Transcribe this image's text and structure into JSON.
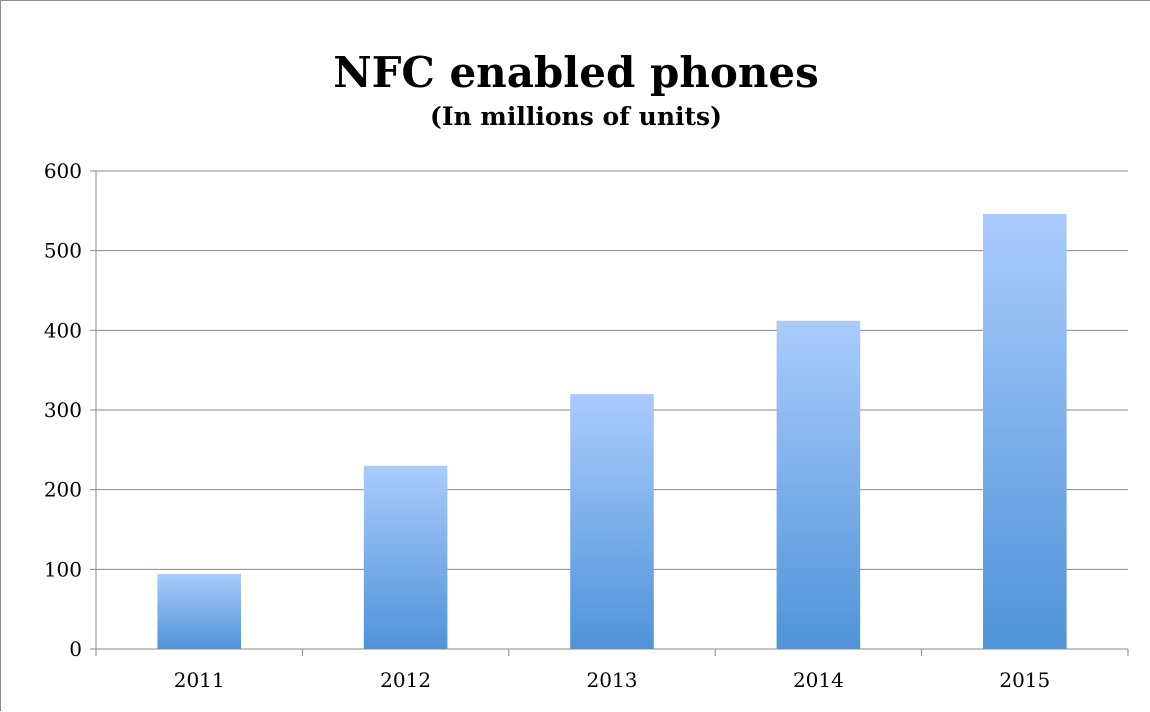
{
  "chart_data": {
    "type": "bar",
    "title": "NFC enabled phones",
    "subtitle": "(In millions of units)",
    "categories": [
      "2011",
      "2012",
      "2013",
      "2014",
      "2015"
    ],
    "values": [
      94,
      230,
      320,
      412,
      546
    ],
    "xlabel": "",
    "ylabel": "",
    "ylim": [
      0,
      600
    ],
    "yticks": [
      0,
      100,
      200,
      300,
      400,
      500,
      600
    ],
    "grid": true,
    "legend": "none",
    "bar_gradient_top": "#aacbfc",
    "bar_gradient_bottom": "#4f93d9",
    "gridline_color": "#8a8a8a"
  }
}
